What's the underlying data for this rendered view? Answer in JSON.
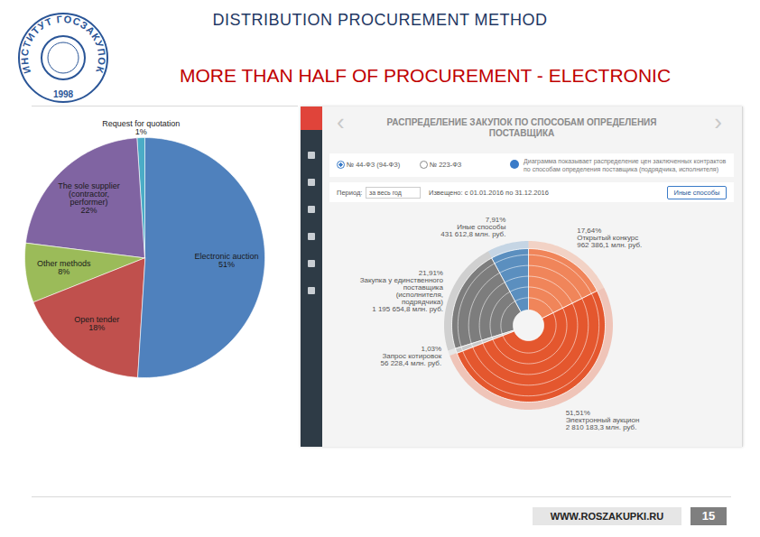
{
  "slide": {
    "title": "DISTRIBUTION PROCUREMENT METHOD",
    "subtitle": "MORE THAN HALF OF PROCUREMENT - ELECTRONIC",
    "logo": {
      "text": "ИНСТИТУТ ГОСЗАКУПОК",
      "year": "1998"
    },
    "footer": "WWW.ROSZAKUPKI.RU",
    "page": "15"
  },
  "chart_data": [
    {
      "type": "pie",
      "categories": [
        "Electronic auction",
        "Open tender",
        "Other methods",
        "The sole supplier (contractor, performer)",
        "Request for quotation"
      ],
      "values": [
        51,
        18,
        8,
        22,
        1
      ],
      "value_labels": [
        "51%",
        "18%",
        "8%",
        "22%",
        "1%"
      ],
      "colors": [
        "#4f81bd",
        "#c0504d",
        "#9bbb59",
        "#8064a2",
        "#4bacc6"
      ],
      "data_labels": true,
      "tick_labels": false
    },
    {
      "type": "donut",
      "title": "РАСПРЕДЕЛЕНИЕ ЗАКУПОК ПО СПОСОБАМ ОПРЕДЕЛЕНИЯ ПОСТАВЩИКА",
      "categories": [
        "Открытый конкурс",
        "Электронный аукцион",
        "Запрос котировок",
        "Закупка у единственного поставщика (исполнителя, подрядчика)",
        "Иные способы"
      ],
      "values": [
        17.64,
        51.51,
        1.03,
        21.91,
        7.91
      ],
      "value_labels": [
        "17,64%",
        "51,51%",
        "1,03%",
        "21,91%",
        "7,91%"
      ],
      "amounts": [
        "962 386,1 млн. руб.",
        "2 810 183,3 млн. руб.",
        "56 228,4 млн. руб.",
        "1 195 654,8 млн. руб.",
        "431 612,8 млн. руб."
      ],
      "colors": [
        "#f0855a",
        "#e4572e",
        "#c9c9c9",
        "#7d7d7d",
        "#5b8fbf"
      ],
      "data_labels": true,
      "tick_labels": false
    }
  ],
  "screenshot": {
    "nav_prev": "‹",
    "nav_next": "›",
    "law_options": [
      "№ 44-ФЗ (94-ФЗ)",
      "№ 223-ФЗ"
    ],
    "info": "Диаграмма показывает распределение цен заключенных контрактов по способам определения поставщика (подрядчика, исполнителя)",
    "period_label": "Период:",
    "period_value": "за весь год",
    "notice": "Извещено: с 01.01.2016 по 31.12.2016",
    "button": "Иные способы"
  }
}
